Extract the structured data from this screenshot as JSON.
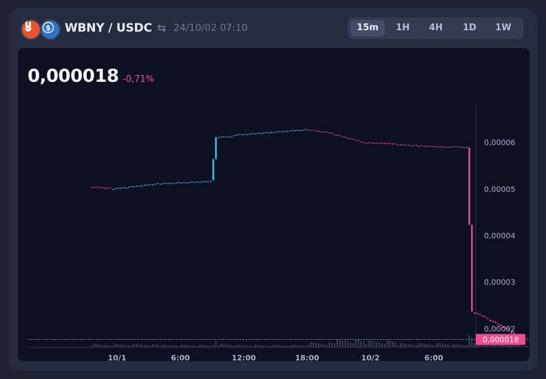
{
  "header": {
    "pair": "WBNY / USDC",
    "swap_icon": "⇆",
    "timestamp": "24/10/02 07:10",
    "timeframes": [
      "15m",
      "1H",
      "4H",
      "1D",
      "1W"
    ],
    "active_timeframe": "15m"
  },
  "price": {
    "value": "0,000018",
    "change": "-0,71%"
  },
  "colors": {
    "up": "#38c6f0",
    "down": "#ee4d8f",
    "volume": "#3a4052"
  },
  "chart_data": {
    "type": "candlestick",
    "x_ticks": [
      "10/1",
      "6:00",
      "12:00",
      "18:00",
      "10/2",
      "6:00"
    ],
    "y_ticks": [
      "0,00006",
      "0,00005",
      "0,00004",
      "0,00003",
      "0,00002"
    ],
    "y_tick_values": [
      6e-05,
      5e-05,
      4e-05,
      3e-05,
      2e-05
    ],
    "ylim": [
      1.6e-05,
      6.8e-05
    ],
    "last_price_label": "0,000018",
    "last_price": 1.77e-05,
    "x_hours_start": -2.4,
    "step_hours": 0.25,
    "volume_max": 28,
    "segments": [
      {
        "from": 5.05e-05,
        "to": 5.02e-05,
        "n": 8,
        "volume": 4
      },
      {
        "from": 5e-05,
        "to": 5.12e-05,
        "n": 18,
        "volume": 4
      },
      {
        "from": 5.12e-05,
        "to": 5.17e-05,
        "n": 20,
        "volume": 3
      },
      {
        "from": 5.2e-05,
        "to": 5.65e-05,
        "n": 1,
        "volume": 5
      },
      {
        "from": 5.65e-05,
        "to": 6.12e-05,
        "n": 1,
        "volume": 14
      },
      {
        "from": 6.12e-05,
        "to": 6.13e-05,
        "n": 6,
        "volume": 4
      },
      {
        "from": 6.16e-05,
        "to": 6.28e-05,
        "n": 28,
        "volume": 3
      },
      {
        "from": 6.28e-05,
        "to": 6.2e-05,
        "n": 10,
        "volume": 6
      },
      {
        "from": 6.18e-05,
        "to": 6e-05,
        "n": 12,
        "volume": 9
      },
      {
        "from": 6e-05,
        "to": 5.98e-05,
        "n": 12,
        "volume": 8
      },
      {
        "from": 5.96e-05,
        "to": 5.9e-05,
        "n": 20,
        "volume": 5
      },
      {
        "from": 5.92e-05,
        "to": 5.9e-05,
        "n": 7,
        "volume": 4
      },
      {
        "from": 5.9e-05,
        "to": 4.24e-05,
        "n": 1,
        "volume": 28
      },
      {
        "from": 4.24e-05,
        "to": 2.38e-05,
        "n": 1,
        "volume": 22
      },
      {
        "from": 2.36e-05,
        "to": 2.22e-05,
        "n": 6,
        "volume": 10
      },
      {
        "from": 2.2e-05,
        "to": 1.97e-05,
        "n": 8,
        "volume": 6
      },
      {
        "from": 1.95e-05,
        "to": 1.79e-05,
        "n": 4,
        "volume": 5
      },
      {
        "from": 1.78e-05,
        "to": 1.77e-05,
        "n": 6,
        "volume": 2
      }
    ]
  }
}
